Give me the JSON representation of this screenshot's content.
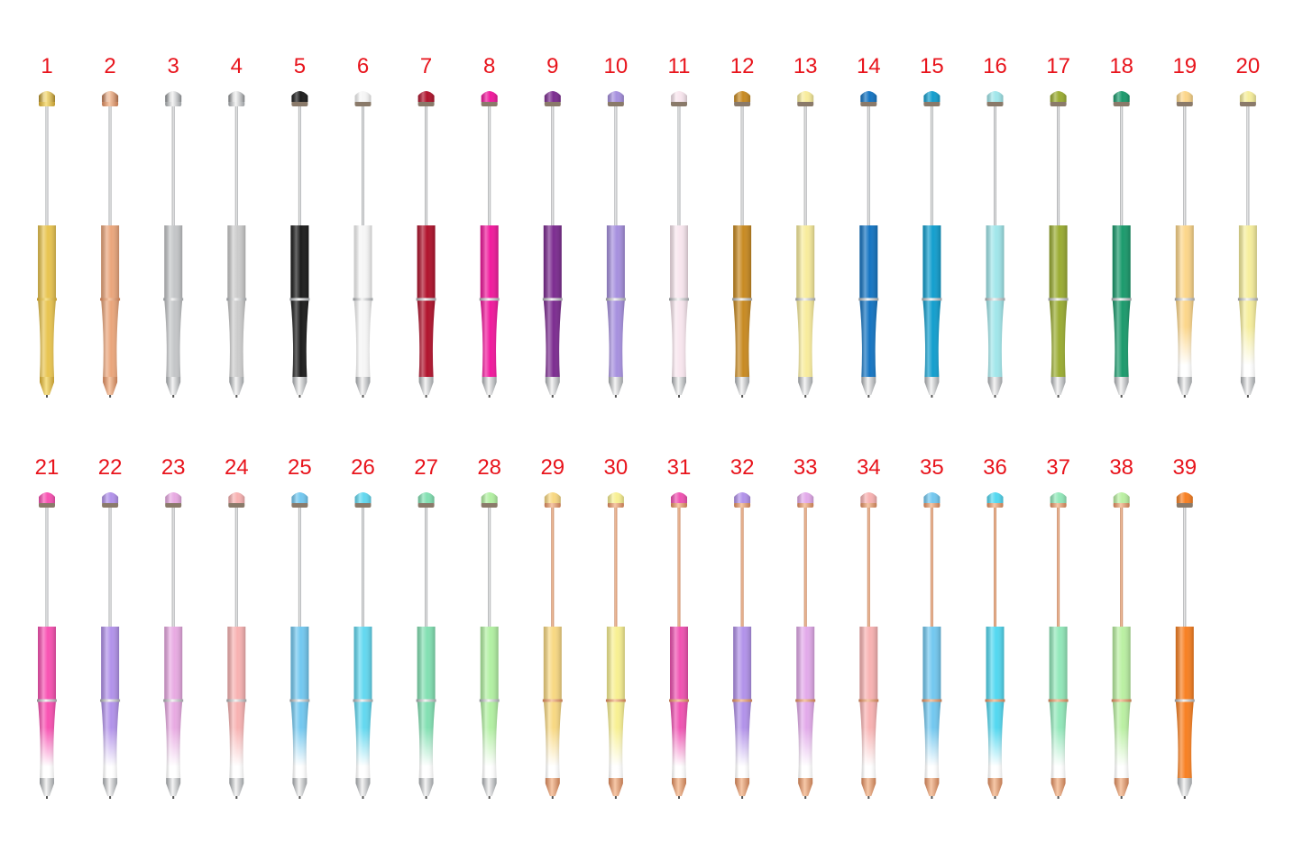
{
  "pens": [
    {
      "label": "1",
      "color": "#e8c450",
      "gradient": false,
      "metal": "gold"
    },
    {
      "label": "2",
      "color": "#eaa67c",
      "gradient": false,
      "metal": "rose"
    },
    {
      "label": "3",
      "color": "#c4c6c8",
      "gradient": false,
      "metal": "silver"
    },
    {
      "label": "4",
      "color": "#cbcbcb",
      "gradient": false,
      "metal": "silver"
    },
    {
      "label": "5",
      "color": "#1c1c1c",
      "gradient": false,
      "metal": "silver"
    },
    {
      "label": "6",
      "color": "#f6f6f6",
      "gradient": false,
      "metal": "silver"
    },
    {
      "label": "7",
      "color": "#b0122c",
      "gradient": false,
      "metal": "silver"
    },
    {
      "label": "8",
      "color": "#f0189c",
      "gradient": false,
      "metal": "silver"
    },
    {
      "label": "9",
      "color": "#7c2c90",
      "gradient": false,
      "metal": "silver"
    },
    {
      "label": "10",
      "color": "#a690de",
      "gradient": false,
      "metal": "silver"
    },
    {
      "label": "11",
      "color": "#f8e6ee",
      "gradient": false,
      "metal": "silver"
    },
    {
      "label": "12",
      "color": "#c88a22",
      "gradient": false,
      "metal": "silver"
    },
    {
      "label": "13",
      "color": "#f8ec9c",
      "gradient": false,
      "metal": "silver"
    },
    {
      "label": "14",
      "color": "#1474c2",
      "gradient": false,
      "metal": "silver"
    },
    {
      "label": "15",
      "color": "#129ece",
      "gradient": false,
      "metal": "silver"
    },
    {
      "label": "16",
      "color": "#a0e6ea",
      "gradient": false,
      "metal": "silver"
    },
    {
      "label": "17",
      "color": "#9aac32",
      "gradient": false,
      "metal": "silver"
    },
    {
      "label": "18",
      "color": "#1a9a6c",
      "gradient": false,
      "metal": "silver"
    },
    {
      "label": "19",
      "color": "#fcd68a",
      "gradient": true,
      "metal": "silver"
    },
    {
      "label": "20",
      "color": "#f6ee9c",
      "gradient": true,
      "metal": "silver"
    },
    {
      "label": "21",
      "color": "#f852b2",
      "gradient": true,
      "metal": "silver"
    },
    {
      "label": "22",
      "color": "#b292ea",
      "gradient": true,
      "metal": "silver"
    },
    {
      "label": "23",
      "color": "#e8aae2",
      "gradient": true,
      "metal": "silver"
    },
    {
      "label": "24",
      "color": "#f8b2b2",
      "gradient": true,
      "metal": "silver"
    },
    {
      "label": "25",
      "color": "#72c8f0",
      "gradient": true,
      "metal": "silver"
    },
    {
      "label": "26",
      "color": "#62d8f0",
      "gradient": true,
      "metal": "silver"
    },
    {
      "label": "27",
      "color": "#82e0b2",
      "gradient": true,
      "metal": "silver"
    },
    {
      "label": "28",
      "color": "#b2f0a2",
      "gradient": true,
      "metal": "silver"
    },
    {
      "label": "29",
      "color": "#f8d882",
      "gradient": true,
      "metal": "rose"
    },
    {
      "label": "30",
      "color": "#f8f092",
      "gradient": true,
      "metal": "rose"
    },
    {
      "label": "31",
      "color": "#f052b2",
      "gradient": true,
      "metal": "rose"
    },
    {
      "label": "32",
      "color": "#b292ea",
      "gradient": true,
      "metal": "rose"
    },
    {
      "label": "33",
      "color": "#e2aaea",
      "gradient": true,
      "metal": "rose"
    },
    {
      "label": "34",
      "color": "#f8b2b2",
      "gradient": true,
      "metal": "rose"
    },
    {
      "label": "35",
      "color": "#72c8f0",
      "gradient": true,
      "metal": "rose"
    },
    {
      "label": "36",
      "color": "#52d8f0",
      "gradient": true,
      "metal": "rose"
    },
    {
      "label": "37",
      "color": "#92e8ba",
      "gradient": true,
      "metal": "rose"
    },
    {
      "label": "38",
      "color": "#baf0a2",
      "gradient": true,
      "metal": "rose"
    },
    {
      "label": "39",
      "color": "#f88022",
      "gradient": false,
      "metal": "silver"
    }
  ],
  "label_color": "#e8141c"
}
